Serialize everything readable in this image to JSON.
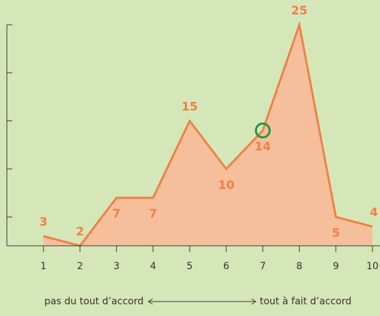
{
  "chart_data": {
    "type": "area",
    "x": [
      1,
      2,
      3,
      4,
      5,
      6,
      7,
      8,
      9,
      10
    ],
    "values": [
      3,
      2,
      7,
      7,
      15,
      10,
      14,
      25,
      5,
      4
    ],
    "color": "#f07f45",
    "fill": "#f6bf9b",
    "xlim": [
      0,
      10
    ],
    "xticks": [
      1,
      2,
      3,
      4,
      5,
      6,
      7,
      8,
      9,
      10
    ],
    "ylim": [
      2,
      25
    ],
    "yticks": [
      5,
      10,
      15,
      20,
      25
    ],
    "highlight_index": 6,
    "highlight_color": "#1a9a3c",
    "scale_left": "pas du tout d’accord",
    "scale_right": "tout à fait d’accord"
  }
}
